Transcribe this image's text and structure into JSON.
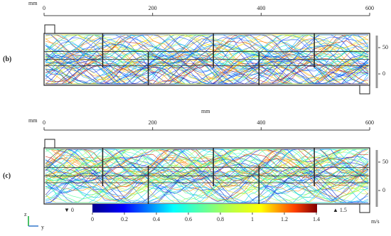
{
  "panels": [
    {
      "label": "(b)",
      "x_unit": "mm",
      "x_ticks": [
        0,
        200,
        400,
        600
      ],
      "y_ticks": [
        50,
        0
      ],
      "bottom_unit": "mm"
    },
    {
      "label": "(c)",
      "x_unit": "mm",
      "x_ticks": [
        0,
        200,
        400,
        600
      ],
      "y_ticks": [
        50,
        0
      ]
    }
  ],
  "colorbar": {
    "min_marker": "▼ 0",
    "ticks": [
      0,
      0.2,
      0.4,
      0.6,
      0.8,
      1,
      1.2,
      1.4
    ],
    "max_marker": "▲ 1.5",
    "unit": "m/s"
  },
  "triad": {
    "z": "z",
    "y": "y"
  }
}
